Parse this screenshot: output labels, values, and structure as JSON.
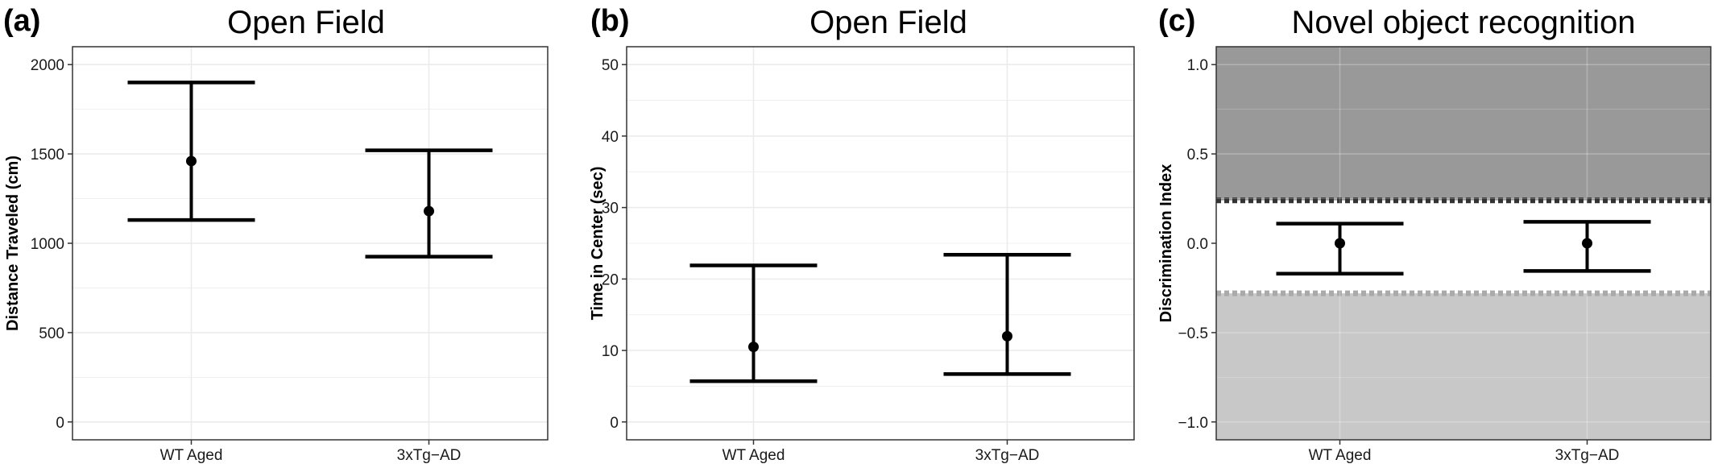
{
  "chart_data": [
    {
      "type": "scatter",
      "panel_label": "(a)",
      "title": "Open Field",
      "ylabel": "Distance Traveled (cm)",
      "xlabel": "",
      "categories": [
        "WT Aged",
        "3xTg−AD"
      ],
      "ylim": [
        -100,
        2100
      ],
      "yticks": [
        0,
        500,
        1000,
        1500,
        2000
      ],
      "ytick_labels": [
        "0",
        "500",
        "1000",
        "1500",
        "2000"
      ],
      "series": [
        {
          "values": [
            1460,
            1180
          ],
          "lower": [
            1130,
            925
          ],
          "upper": [
            1900,
            1520
          ]
        }
      ],
      "grid": true,
      "legend": "none"
    },
    {
      "type": "scatter",
      "panel_label": "(b)",
      "title": "Open Field",
      "ylabel": "Time in Center (sec)",
      "xlabel": "",
      "categories": [
        "WT Aged",
        "3xTg−AD"
      ],
      "ylim": [
        -2.5,
        52.5
      ],
      "yticks": [
        0,
        10,
        20,
        30,
        40,
        50
      ],
      "ytick_labels": [
        "0",
        "10",
        "20",
        "30",
        "40",
        "50"
      ],
      "series": [
        {
          "values": [
            10.5,
            12.0
          ],
          "lower": [
            5.7,
            6.7
          ],
          "upper": [
            21.9,
            23.4
          ]
        }
      ],
      "grid": true,
      "legend": "none"
    },
    {
      "type": "scatter",
      "panel_label": "(c)",
      "title": "Novel object recognition",
      "ylabel": "Discrimination Index",
      "xlabel": "",
      "categories": [
        "WT Aged",
        "3xTg−AD"
      ],
      "ylim": [
        -1.1,
        1.1
      ],
      "yticks": [
        -1.0,
        -0.5,
        0.0,
        0.5,
        1.0
      ],
      "ytick_labels": [
        "−1.0",
        "−0.5",
        "0.0",
        "0.5",
        "1.0"
      ],
      "series": [
        {
          "values": [
            0.0,
            0.0
          ],
          "lower": [
            -0.17,
            -0.155
          ],
          "upper": [
            0.11,
            0.12
          ]
        }
      ],
      "bands": [
        {
          "from": 0.24,
          "to": 1.1,
          "color": "#999999",
          "edge": 0.24,
          "edge_color": "#333333"
        },
        {
          "from": -1.1,
          "to": -0.28,
          "color": "#c8c8c8",
          "edge": -0.28,
          "edge_color": "#aaaaaa"
        }
      ],
      "grid": true,
      "legend": "none"
    }
  ]
}
